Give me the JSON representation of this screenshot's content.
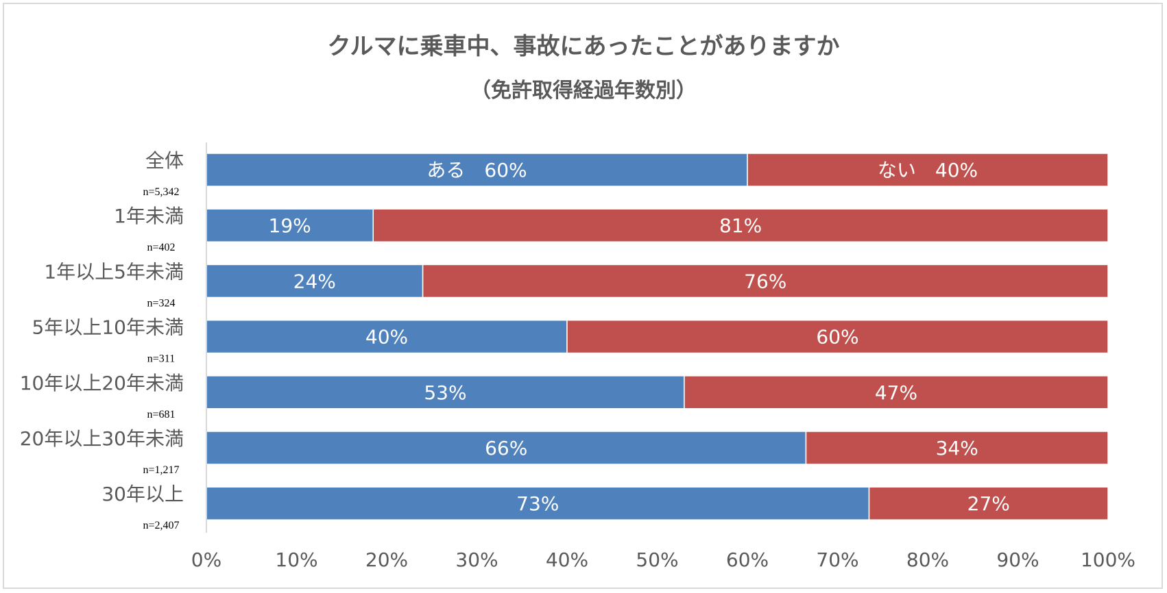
{
  "chart_data": {
    "type": "bar",
    "orientation": "horizontal",
    "stacked": true,
    "percent_stacked": true,
    "title": "クルマに乗車中、事故にあったことがありますか",
    "subtitle": "（免許取得経過年数別）",
    "categories": [
      "全体",
      "1年未満",
      "1年以上5年未満",
      "5年以上10年未満",
      "10年以上20年未満",
      "20年以上30年未満",
      "30年以上"
    ],
    "sample_sizes": [
      "n=5,342",
      "n=402",
      "n=324",
      "n=311",
      "n=681",
      "n=1,217",
      "n=2,407"
    ],
    "series": [
      {
        "name": "ある",
        "color": "#4f81bd",
        "values": [
          60,
          18.5,
          24,
          40,
          53,
          66.5,
          73.5
        ],
        "labels": [
          "ある　60%",
          "19%",
          "24%",
          "40%",
          "53%",
          "66%",
          "73%"
        ]
      },
      {
        "name": "ない",
        "color": "#c0504d",
        "values": [
          40,
          81.5,
          76,
          60,
          47,
          33.5,
          26.5
        ],
        "labels": [
          "ない　40%",
          "81%",
          "76%",
          "60%",
          "47%",
          "34%",
          "27%"
        ]
      }
    ],
    "xlim": [
      0,
      100
    ],
    "x_ticks": [
      "0%",
      "10%",
      "20%",
      "30%",
      "40%",
      "50%",
      "60%",
      "70%",
      "80%",
      "90%",
      "100%"
    ],
    "xlabel": "",
    "ylabel": "",
    "grid": false,
    "legend": "none"
  }
}
